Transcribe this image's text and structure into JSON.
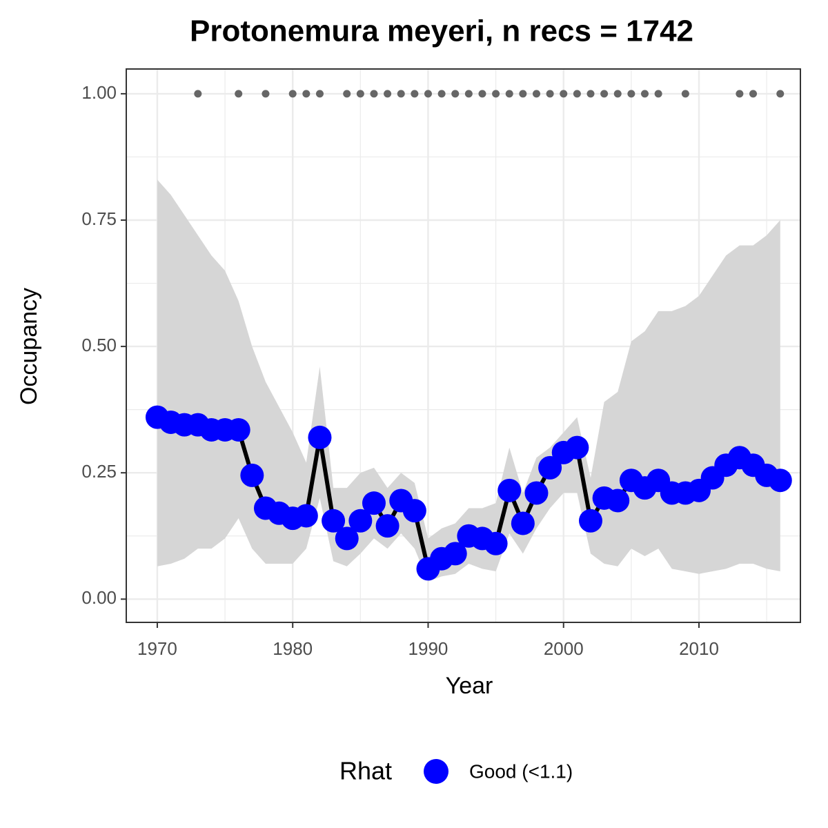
{
  "chart_data": {
    "type": "line",
    "title": "Protonemura meyeri, n recs = 1742",
    "x_label": "Year",
    "y_label": "Occupancy",
    "legend_title": "Rhat",
    "legend_position": "bottom",
    "grid": true,
    "x": [
      1970,
      1971,
      1972,
      1973,
      1974,
      1975,
      1976,
      1977,
      1978,
      1979,
      1980,
      1981,
      1982,
      1983,
      1984,
      1985,
      1986,
      1987,
      1988,
      1989,
      1990,
      1991,
      1992,
      1993,
      1994,
      1995,
      1996,
      1997,
      1998,
      1999,
      2000,
      2001,
      2002,
      2003,
      2004,
      2005,
      2006,
      2007,
      2008,
      2009,
      2010,
      2011,
      2012,
      2013,
      2014,
      2015,
      2016
    ],
    "series": [
      {
        "name": "Good (<1.1)",
        "color": "#0000ff",
        "line_color": "#000000",
        "values": [
          0.36,
          0.35,
          0.345,
          0.345,
          0.335,
          0.335,
          0.335,
          0.245,
          0.18,
          0.17,
          0.16,
          0.165,
          0.32,
          0.155,
          0.12,
          0.155,
          0.19,
          0.145,
          0.195,
          0.175,
          0.06,
          0.08,
          0.09,
          0.125,
          0.12,
          0.11,
          0.215,
          0.15,
          0.21,
          0.26,
          0.29,
          0.3,
          0.155,
          0.2,
          0.195,
          0.235,
          0.22,
          0.235,
          0.21,
          0.21,
          0.215,
          0.24,
          0.265,
          0.28,
          0.265,
          0.245,
          0.235
        ]
      }
    ],
    "band": {
      "color": "#d6d6d6",
      "upper": [
        0.83,
        0.8,
        0.76,
        0.72,
        0.68,
        0.65,
        0.59,
        0.5,
        0.43,
        0.38,
        0.33,
        0.27,
        0.46,
        0.22,
        0.22,
        0.25,
        0.26,
        0.22,
        0.25,
        0.23,
        0.12,
        0.14,
        0.15,
        0.18,
        0.18,
        0.19,
        0.3,
        0.21,
        0.28,
        0.3,
        0.33,
        0.36,
        0.24,
        0.39,
        0.41,
        0.51,
        0.53,
        0.57,
        0.57,
        0.58,
        0.6,
        0.64,
        0.68,
        0.7,
        0.7,
        0.72,
        0.75
      ],
      "lower": [
        0.065,
        0.07,
        0.08,
        0.1,
        0.1,
        0.12,
        0.16,
        0.1,
        0.07,
        0.07,
        0.07,
        0.1,
        0.2,
        0.075,
        0.065,
        0.09,
        0.12,
        0.1,
        0.13,
        0.1,
        0.035,
        0.045,
        0.05,
        0.07,
        0.06,
        0.055,
        0.13,
        0.09,
        0.14,
        0.18,
        0.21,
        0.21,
        0.09,
        0.07,
        0.065,
        0.1,
        0.085,
        0.1,
        0.06,
        0.055,
        0.05,
        0.055,
        0.06,
        0.07,
        0.07,
        0.06,
        0.055
      ]
    },
    "records": {
      "color": "#666666",
      "x": [
        1973,
        1976,
        1978,
        1980,
        1981,
        1982,
        1984,
        1985,
        1986,
        1987,
        1988,
        1989,
        1990,
        1991,
        1992,
        1993,
        1994,
        1995,
        1996,
        1997,
        1998,
        1999,
        2000,
        2001,
        2002,
        2003,
        2004,
        2005,
        2006,
        2007,
        2009,
        2013,
        2014,
        2016
      ],
      "values": [
        1,
        1,
        1,
        1,
        1,
        1,
        1,
        1,
        1,
        1,
        1,
        1,
        1,
        1,
        1,
        1,
        1,
        1,
        1,
        1,
        1,
        1,
        1,
        1,
        1,
        1,
        1,
        1,
        1,
        1,
        1,
        1,
        1,
        1
      ]
    },
    "xlim": [
      1967.71,
      2017.49
    ],
    "ylim": [
      -0.046,
      1.049
    ],
    "xticks": [
      1970,
      1980,
      1990,
      2000,
      2010
    ],
    "x_minor_ticks": [
      1975,
      1985,
      1995,
      2005,
      2015
    ],
    "yticks": [
      {
        "value": 0,
        "label": "0.00"
      },
      {
        "value": 0.25,
        "label": "0.25"
      },
      {
        "value": 0.5,
        "label": "0.50"
      },
      {
        "value": 0.75,
        "label": "0.75"
      },
      {
        "value": 1,
        "label": "1.00"
      }
    ],
    "y_minor_ticks": [
      0.125,
      0.375,
      0.625,
      0.875
    ]
  }
}
